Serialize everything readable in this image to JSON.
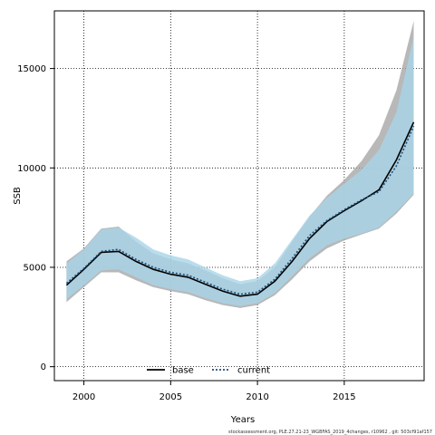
{
  "chart_data": {
    "type": "line",
    "xlabel": "Years",
    "ylabel": "SSB",
    "xlim": [
      1998.3,
      2019.6
    ],
    "ylim": [
      -700,
      17900
    ],
    "x_ticks": [
      2000,
      2005,
      2010,
      2015
    ],
    "y_ticks": [
      0,
      5000,
      10000,
      15000
    ],
    "grid": true,
    "legend_position": "bottom-center",
    "x": [
      1999,
      2000,
      2001,
      2002,
      2003,
      2004,
      2005,
      2006,
      2007,
      2008,
      2009,
      2010,
      2011,
      2012,
      2013,
      2014,
      2015,
      2016,
      2017,
      2018,
      2019
    ],
    "series": [
      {
        "name": "base",
        "color": "#000000",
        "dash": "solid",
        "band_color": "#a6a6a6",
        "values": [
          4100,
          4900,
          5750,
          5800,
          5300,
          4900,
          4650,
          4500,
          4150,
          3800,
          3550,
          3650,
          4300,
          5300,
          6450,
          7300,
          7850,
          8350,
          8900,
          10400,
          12300
        ],
        "lower": [
          3250,
          4000,
          4750,
          4750,
          4350,
          4000,
          3800,
          3650,
          3350,
          3100,
          2950,
          3100,
          3600,
          4400,
          5300,
          5950,
          6350,
          6650,
          6950,
          7700,
          8650
        ],
        "upper": [
          5300,
          5950,
          6950,
          7050,
          6300,
          5700,
          5400,
          5200,
          4850,
          4450,
          4150,
          4300,
          5000,
          6300,
          7550,
          8600,
          9400,
          10350,
          11650,
          13900,
          17400
        ]
      },
      {
        "name": "current",
        "color": "#1f4e79",
        "dash": "dotted",
        "band_color": "#a8d4e8",
        "values": [
          4200,
          4950,
          5800,
          5900,
          5400,
          5000,
          4750,
          4600,
          4250,
          3900,
          3650,
          3750,
          4400,
          5450,
          6600,
          7350,
          7900,
          8400,
          8800,
          10100,
          12100
        ],
        "lower": [
          3400,
          4100,
          4850,
          4900,
          4500,
          4100,
          3900,
          3750,
          3450,
          3200,
          3050,
          3200,
          3700,
          4550,
          5450,
          6100,
          6450,
          6700,
          7000,
          7800,
          8700
        ],
        "upper": [
          5200,
          5900,
          6900,
          7000,
          6500,
          5900,
          5600,
          5400,
          5000,
          4600,
          4300,
          4450,
          5200,
          6400,
          7600,
          8500,
          9200,
          9900,
          10900,
          12800,
          16600
        ]
      }
    ]
  },
  "footer_text": "stockassessment.org,  PLE.27.21-23_WGBFAS_2019_4changes,  r10962 ,  git: 503cf91af157"
}
